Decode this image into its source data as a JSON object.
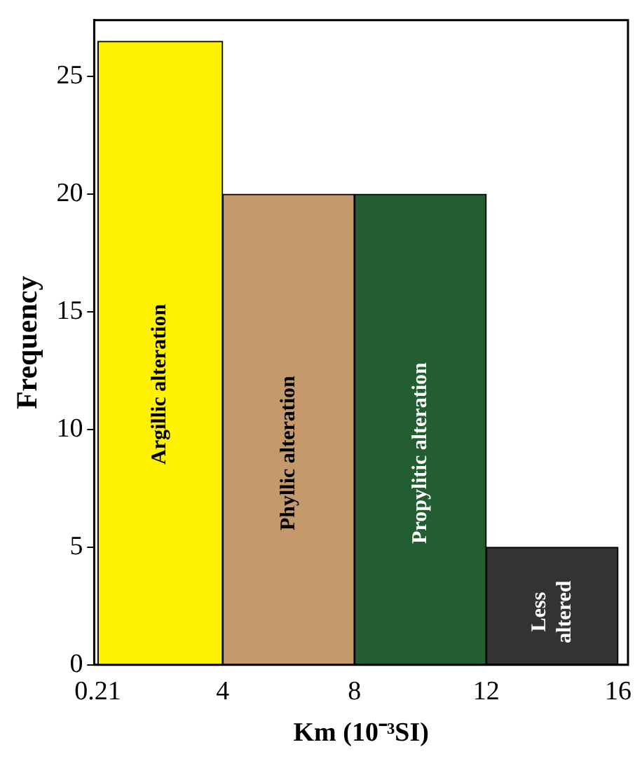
{
  "chart_data": {
    "type": "histogram",
    "xlabel": "Km (10⁻³SI)",
    "ylabel": "Frequency",
    "bins": [
      0.21,
      4,
      8,
      12,
      16
    ],
    "values": [
      26.5,
      20,
      20,
      5
    ],
    "colors": [
      "#fff200",
      "#c49a6c",
      "#235e33",
      "#333333"
    ],
    "xlim": [
      0.1,
      16.3
    ],
    "xticks": [
      0.21,
      4,
      8,
      12,
      16
    ],
    "ylim": [
      0,
      27.4
    ],
    "yticks": [
      0,
      5,
      10,
      15,
      20,
      25
    ],
    "grid": false,
    "legend": false,
    "annotations": [
      "Argillic alteration",
      "Phyllic alteration",
      "Propylitic alteration",
      "Less\naltered"
    ]
  }
}
